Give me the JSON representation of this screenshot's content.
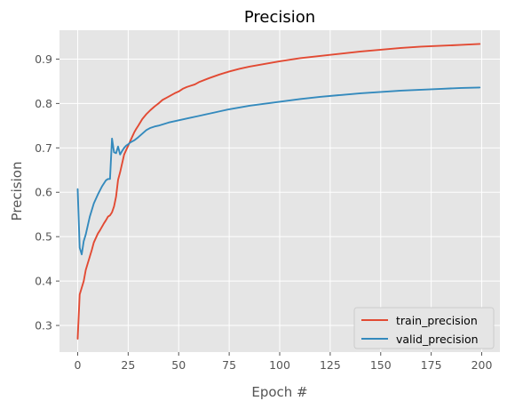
{
  "colors": {
    "background": "#ffffff",
    "plot_background": "#e5e5e5",
    "grid": "#ffffff",
    "train_line": "#e24a33",
    "valid_line": "#348abd",
    "axis_text": "#555555",
    "title_text": "#000000"
  },
  "chart_data": {
    "type": "line",
    "title": "Precision",
    "xlabel": "Epoch #",
    "ylabel": "Precision",
    "xlim": [
      -9,
      209
    ],
    "ylim": [
      0.24,
      0.965
    ],
    "xticks": [
      0,
      25,
      50,
      75,
      100,
      125,
      150,
      175,
      200
    ],
    "yticks": [
      0.3,
      0.4,
      0.5,
      0.6,
      0.7,
      0.8,
      0.9
    ],
    "ytick_labels": [
      "0.3",
      "0.4",
      "0.5",
      "0.6",
      "0.7",
      "0.8",
      "0.9"
    ],
    "grid": true,
    "legend_position": "bottom-right",
    "series": [
      {
        "name": "train_precision",
        "color": "#e24a33",
        "x": [
          0,
          1,
          2,
          3,
          4,
          5,
          6,
          7,
          8,
          9,
          10,
          11,
          12,
          13,
          14,
          15,
          16,
          17,
          18,
          19,
          20,
          21,
          22,
          23,
          24,
          25,
          26,
          27,
          28,
          29,
          30,
          32,
          34,
          36,
          38,
          40,
          42,
          44,
          46,
          48,
          50,
          52,
          54,
          56,
          58,
          60,
          65,
          70,
          75,
          80,
          85,
          90,
          95,
          100,
          110,
          120,
          130,
          140,
          150,
          160,
          170,
          180,
          190,
          199
        ],
        "y": [
          0.27,
          0.37,
          0.385,
          0.4,
          0.425,
          0.44,
          0.455,
          0.47,
          0.487,
          0.497,
          0.507,
          0.514,
          0.522,
          0.53,
          0.537,
          0.545,
          0.548,
          0.555,
          0.568,
          0.59,
          0.628,
          0.645,
          0.665,
          0.685,
          0.695,
          0.705,
          0.715,
          0.725,
          0.735,
          0.743,
          0.75,
          0.765,
          0.776,
          0.785,
          0.793,
          0.8,
          0.808,
          0.813,
          0.818,
          0.823,
          0.827,
          0.833,
          0.837,
          0.84,
          0.843,
          0.848,
          0.857,
          0.865,
          0.872,
          0.878,
          0.883,
          0.887,
          0.891,
          0.895,
          0.902,
          0.907,
          0.912,
          0.917,
          0.921,
          0.925,
          0.928,
          0.93,
          0.932,
          0.934
        ]
      },
      {
        "name": "valid_precision",
        "color": "#348abd",
        "x": [
          0,
          1,
          2,
          3,
          4,
          5,
          6,
          7,
          8,
          9,
          10,
          11,
          12,
          13,
          14,
          15,
          16,
          17,
          18,
          19,
          20,
          21,
          22,
          23,
          24,
          25,
          26,
          28,
          30,
          32,
          34,
          36,
          38,
          40,
          45,
          50,
          55,
          60,
          65,
          70,
          75,
          80,
          85,
          90,
          95,
          100,
          110,
          120,
          130,
          140,
          150,
          160,
          170,
          180,
          190,
          199
        ],
        "y": [
          0.607,
          0.475,
          0.46,
          0.49,
          0.505,
          0.525,
          0.545,
          0.56,
          0.575,
          0.585,
          0.595,
          0.604,
          0.613,
          0.62,
          0.627,
          0.63,
          0.63,
          0.721,
          0.69,
          0.688,
          0.703,
          0.685,
          0.693,
          0.7,
          0.705,
          0.708,
          0.712,
          0.717,
          0.724,
          0.732,
          0.74,
          0.745,
          0.748,
          0.75,
          0.757,
          0.762,
          0.767,
          0.772,
          0.777,
          0.782,
          0.787,
          0.791,
          0.795,
          0.798,
          0.801,
          0.804,
          0.81,
          0.815,
          0.819,
          0.823,
          0.826,
          0.829,
          0.831,
          0.833,
          0.835,
          0.836
        ]
      }
    ]
  }
}
